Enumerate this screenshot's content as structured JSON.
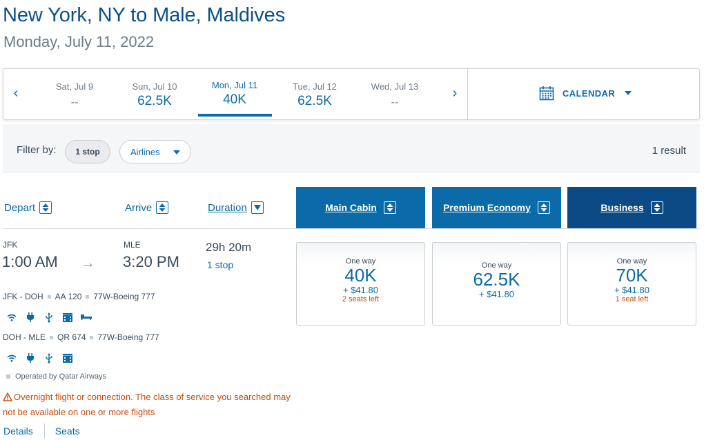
{
  "header": {
    "title": "New York, NY to Male, Maldives",
    "date": "Monday, July 11, 2022"
  },
  "date_strip": {
    "days": [
      {
        "label": "Sat, Jul 9",
        "price": "--"
      },
      {
        "label": "Sun, Jul 10",
        "price": "62.5K"
      },
      {
        "label": "Mon, Jul 11",
        "price": "40K"
      },
      {
        "label": "Tue, Jul 12",
        "price": "62.5K"
      },
      {
        "label": "Wed, Jul 13",
        "price": "--"
      }
    ],
    "selected_day": "Mon, Jul 11",
    "prev_icon": "chevron-left-icon",
    "next_icon": "chevron-right-icon",
    "calendar_label": "CALENDAR"
  },
  "filters": {
    "label": "Filter by:",
    "stops_chip": "1 stop",
    "airlines_dropdown": "Airlines",
    "result_count": "1 result"
  },
  "columns": {
    "depart": "Depart",
    "arrive": "Arrive",
    "duration": "Duration",
    "cabins": [
      "Main Cabin",
      "Premium Economy",
      "Business"
    ]
  },
  "flight": {
    "origin": "JFK",
    "destination": "MLE",
    "depart_time": "1:00 AM",
    "arrive_time": "3:20 PM",
    "duration": "29h 20m",
    "stops": "1 stop",
    "segments": [
      {
        "route": "JFK - DOH",
        "flight": "AA 120",
        "aircraft": "77W-Boeing 777",
        "amenities": [
          "wifi-icon",
          "power-icon",
          "usb-icon",
          "entertainment-icon",
          "flat-bed-icon"
        ]
      },
      {
        "route": "DOH - MLE",
        "flight": "QR 674",
        "aircraft": "77W-Boeing 777",
        "amenities": [
          "wifi-icon",
          "power-icon",
          "usb-icon",
          "entertainment-icon"
        ]
      }
    ],
    "operated_by": "Operated by Qatar Airways",
    "warning": "Overnight flight or connection. The class of service you searched may not be available on one or more flights",
    "details_link": "Details",
    "seats_link": "Seats"
  },
  "prices": [
    {
      "label": "One way",
      "miles": "40K",
      "tax": "+ $41.80",
      "seats": "2 seats left"
    },
    {
      "label": "One way",
      "miles": "62.5K",
      "tax": "+ $41.80",
      "seats": ""
    },
    {
      "label": "One way",
      "miles": "70K",
      "tax": "+ $41.80",
      "seats": "1 seat left"
    }
  ],
  "colors": {
    "brand_blue": "#0b6aa8",
    "title_blue": "#0b4f8a",
    "business_blue": "#0c4a85",
    "warning_orange": "#c44b0a"
  }
}
